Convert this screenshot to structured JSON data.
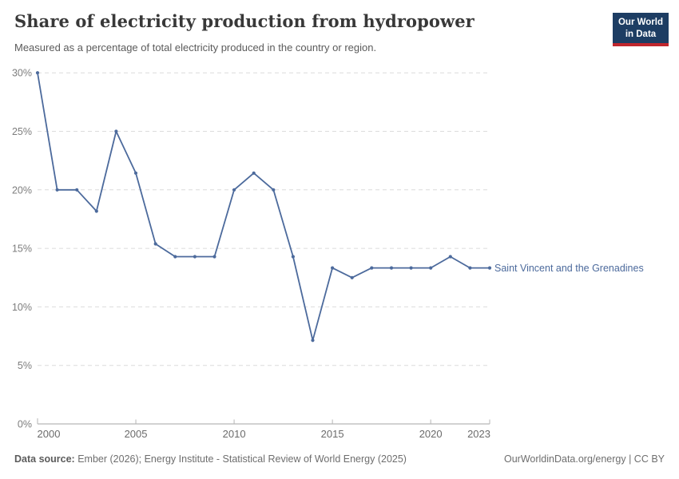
{
  "header": {
    "title": "Share of electricity production from hydropower",
    "subtitle": "Measured as a percentage of total electricity produced in the country or region.",
    "logo": {
      "line1": "Our World",
      "line2": "in Data"
    }
  },
  "chart_data": {
    "type": "line",
    "title": "Share of electricity production from hydropower",
    "xlabel": "",
    "ylabel": "",
    "xlim": [
      2000,
      2023
    ],
    "ylim": [
      0,
      30
    ],
    "grid": "horizontal dashed",
    "legend_position": "right-of-line-end",
    "x_ticks": [
      2000,
      2005,
      2010,
      2015,
      2020,
      2023
    ],
    "y_tick_values": [
      0,
      5,
      10,
      15,
      20,
      25,
      30
    ],
    "y_ticks": [
      "0%",
      "5%",
      "10%",
      "15%",
      "20%",
      "25%",
      "30%"
    ],
    "line_color": "#4c6a9c",
    "series": [
      {
        "name": "Saint Vincent and the Grenadines",
        "x": [
          2000,
          2001,
          2002,
          2003,
          2004,
          2005,
          2006,
          2007,
          2008,
          2009,
          2010,
          2011,
          2012,
          2013,
          2014,
          2015,
          2016,
          2017,
          2018,
          2019,
          2020,
          2021,
          2022,
          2023
        ],
        "values": [
          30,
          20,
          20,
          18.18,
          25,
          21.43,
          15.38,
          14.29,
          14.29,
          14.29,
          20,
          21.43,
          20,
          14.29,
          7.14,
          13.33,
          12.5,
          13.33,
          13.33,
          13.33,
          13.33,
          14.29,
          13.33,
          13.33
        ]
      }
    ]
  },
  "footer": {
    "datasource_label": "Data source:",
    "datasource_text": " Ember (2026); Energy Institute - Statistical Review of World Energy (2025)",
    "right_text": "OurWorldinData.org/energy | CC BY"
  },
  "colors": {
    "line": "#4c6a9c",
    "logo_navy": "#1d3d63",
    "logo_red": "#c0262d",
    "gridline": "#dcdcdc",
    "axis": "#a5a5a5"
  }
}
